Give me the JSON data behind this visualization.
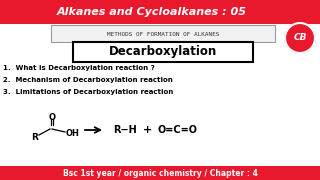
{
  "title": "Alkanes and Cycloalkanes : 05",
  "title_bg": "#e8192c",
  "title_color": "#ffffff",
  "subtitle_box": "METHODS OF FORMATION OF ALKANES",
  "heading": "Decarboxylation",
  "points": [
    "1.  What is Decarboxylation reaction ?",
    "2.  Mechanism of Decarboxylation reaction",
    "3.  Limitations of Decarboxylation reaction"
  ],
  "footer": "Bsc 1st year / organic chemistry / Chapter : 4",
  "footer_bg": "#e8192c",
  "footer_color": "#ffffff",
  "bg_color": "#ffffff",
  "logo_text": "CB",
  "logo_bg": "#e8192c"
}
